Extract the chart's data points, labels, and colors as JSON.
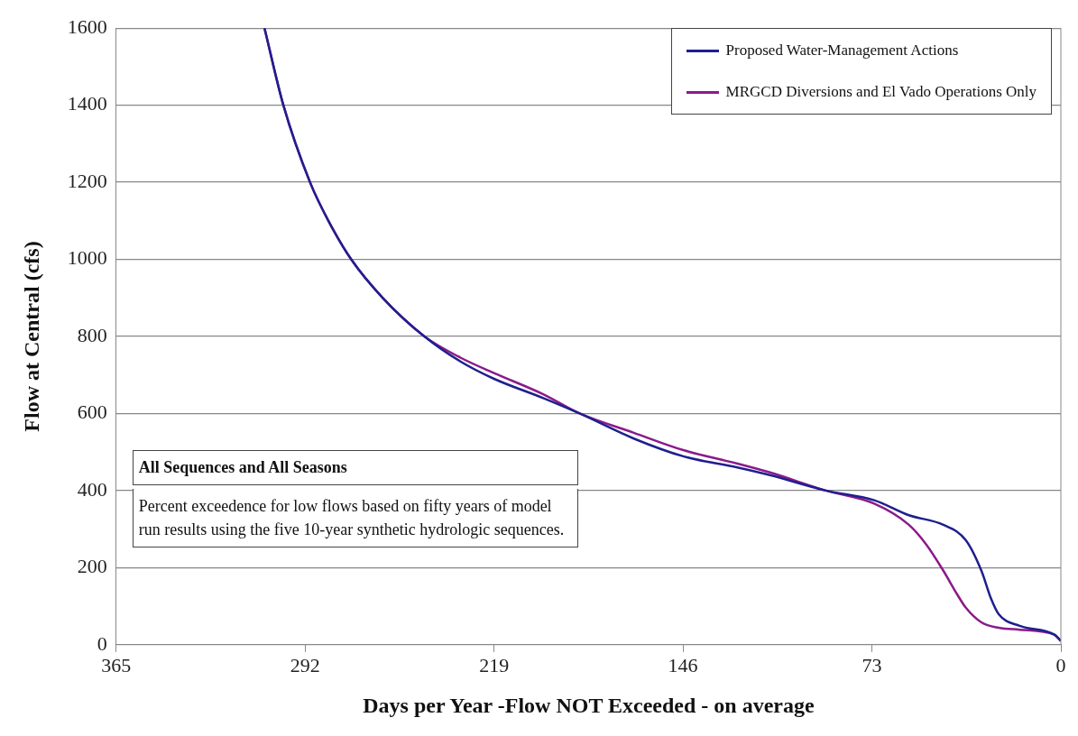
{
  "chart_data": {
    "type": "line",
    "xlabel": "Days per Year -Flow NOT Exceeded - on average",
    "ylabel": "Flow at Central (cfs)",
    "xlim": [
      365,
      0
    ],
    "xticks": [
      365,
      292,
      219,
      146,
      73,
      0
    ],
    "ylim": [
      0,
      1600
    ],
    "yticks": [
      0,
      200,
      400,
      600,
      800,
      1000,
      1200,
      1400,
      1600
    ],
    "grid": "y",
    "legend": "top right",
    "marker": "none",
    "line_style": "solid",
    "annotations": [
      "All Sequences and All Seasons",
      "Percent exceedence for low flows based on fifty years of model run results using the five 10-year synthetic hydrologic sequences."
    ],
    "series": [
      {
        "name": "Proposed Water-Management Actions",
        "color": "#1f1f8f",
        "x": [
          307.7,
          300.4,
          290.1,
          283,
          274.2,
          262,
          245.9,
          232,
          219,
          200,
          185.9,
          165,
          145.9,
          125,
          112.4,
          90.8,
          72.1,
          58.7,
          45.4,
          36.7,
          30.7,
          27,
          24,
          15.9,
          2.5,
          0
        ],
        "values": [
          1600,
          1400,
          1200,
          1100,
          1000,
          900,
          800,
          735,
          690,
          640,
          600,
          535,
          489,
          460,
          440,
          400,
          375,
          336,
          311,
          271,
          192,
          120,
          79,
          49,
          26,
          10
        ]
      },
      {
        "name": "MRGCD Diversions and El Vado Operations Only",
        "color": "#8b1a8b",
        "x": [
          307.7,
          300.4,
          290.1,
          283,
          274.2,
          262,
          245.9,
          232,
          219,
          200,
          185.9,
          165,
          145.9,
          125,
          112.4,
          90.8,
          72.1,
          58.7,
          52,
          45.4,
          40,
          36.7,
          30.7,
          24,
          15.9,
          2.5,
          0
        ],
        "values": [
          1600,
          1400,
          1200,
          1100,
          1000,
          900,
          800,
          745,
          705,
          650,
          600,
          550,
          505,
          470,
          447,
          400,
          366,
          311,
          260,
          192,
          130,
          96,
          58,
          44,
          39,
          26,
          10
        ]
      }
    ]
  }
}
